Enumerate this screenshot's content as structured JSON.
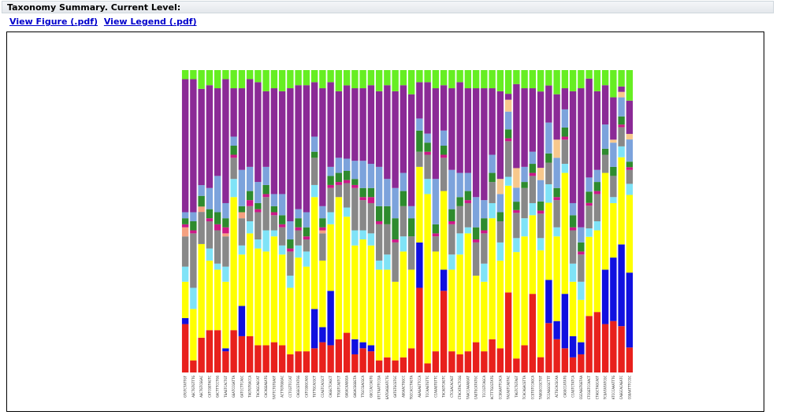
{
  "header": {
    "title": "Taxonomy Summary. Current Level:"
  },
  "links": {
    "figure": "View Figure (.pdf)",
    "legend": "View Legend (.pdf)"
  },
  "colors": [
    "#e8201c",
    "#1010e0",
    "#ffff00",
    "#7fe3f7",
    "#888888",
    "#f4a080",
    "#cc1888",
    "#2e8b2e",
    "#7ca3dc",
    "#f7c88c",
    "#8b2a96",
    "#66ee22"
  ],
  "chart_data": {
    "type": "bar",
    "stacked": true,
    "normalized": true,
    "ylim": [
      0,
      1
    ],
    "categories": [
      "GTGTCTATTGT",
      "AGCTGTGTTTG",
      "AGCTGTCGGAC",
      "CATCGGTAGTC",
      "GACTTTCCTGG",
      "TGAGTCACTGT",
      "GGATCCGATTA",
      "GATCCTTCAGC",
      "TAGTGTGACCA",
      "TACAGCAGCAT",
      "CACAGGAGATG",
      "TATTCTGTGAGT",
      "ACTTGTGGGAC",
      "CCTCGTTCCAT",
      "CAGGCGTATGG",
      "CATCGGGCAGG",
      "TGTTGCACGCT",
      "CCAGTCACGCT",
      "CAGGCTCAGCT",
      "TTGGTCAGTCT",
      "GAGACAAGGGA",
      "GAGACGGGGTA",
      "TTGCCGACGCA",
      "GGCCACCAGTG",
      "GTCTAATTCCGA",
      "GATGAGGATCTG",
      "GATGTGCGTGC",
      "AGGAACTGGCC",
      "TGCCACCTAGTA",
      "AGAGAGTTCCA",
      "TCCAAGTGTTC",
      "CCAAAGTGTTC",
      "TACAGTCAGTC",
      "CTCGACACAGT",
      "CTACATACTCGG",
      "TAACCAAAGGAT",
      "CAGTGCATATGC",
      "TCCCGTCAGCA",
      "ACTTTGCGTATG",
      "CCGGAATTCACA",
      "TACAGTCAGTAC",
      "TAGTCTGTAGT",
      "TCACAGACGTTA",
      "CCGTGTCCAGCA",
      "TAGGGCCGCTGT",
      "TCCAGGCGCTTT",
      "ACTGCACGCAA",
      "CAGGCCATATG",
      "CCAGTCTATCA",
      "CGCAGGTGGTAA",
      "CTCGGTCCAACT",
      "CTAGCTAGCAGT",
      "TCGATATATCGC",
      "ATCCCAAATTTG",
      "CAGGCACAGATC",
      "CGGAATTTCCGC"
    ],
    "series": [
      {
        "color": "#e8201c",
        "values": [
          0.16,
          0.04,
          0.13,
          0.14,
          0.14,
          0.07,
          0.14,
          0.12,
          0.12,
          0.09,
          0.09,
          0.1,
          0.09,
          0.06,
          0.07,
          0.07,
          0.08,
          0.1,
          0.09,
          0.11,
          0.13,
          0.06,
          0.08,
          0.07,
          0.04,
          0.05,
          0.04,
          0.05,
          0.08,
          0.28,
          0.03,
          0.07,
          0.27,
          0.07,
          0.06,
          0.07,
          0.1,
          0.07,
          0.11,
          0.08,
          0.27,
          0.05,
          0.09,
          0.26,
          0.05,
          0.16,
          0.11,
          0.08,
          0.05,
          0.06,
          0.2,
          0.2,
          0.16,
          0.17,
          0.17,
          0.09
        ]
      },
      {
        "color": "#1010e0",
        "values": [
          0.02,
          0.0,
          0.0,
          0.0,
          0.0,
          0.01,
          0.0,
          0.1,
          0.0,
          0.0,
          0.0,
          0.0,
          0.0,
          0.0,
          0.0,
          0.0,
          0.13,
          0.05,
          0.18,
          0.0,
          0.0,
          0.05,
          0.02,
          0.02,
          0.0,
          0.0,
          0.0,
          0.0,
          0.0,
          0.15,
          0.0,
          0.0,
          0.07,
          0.0,
          0.0,
          0.0,
          0.0,
          0.0,
          0.0,
          0.0,
          0.0,
          0.0,
          0.0,
          0.0,
          0.0,
          0.14,
          0.06,
          0.18,
          0.07,
          0.04,
          0.0,
          0.0,
          0.18,
          0.21,
          0.3,
          0.27
        ]
      },
      {
        "color": "#ffff00",
        "values": [
          0.12,
          0.17,
          0.35,
          0.23,
          0.2,
          0.22,
          0.44,
          0.17,
          0.34,
          0.32,
          0.31,
          0.35,
          0.3,
          0.22,
          0.31,
          0.28,
          0.37,
          0.22,
          0.22,
          0.47,
          0.38,
          0.31,
          0.34,
          0.33,
          0.3,
          0.29,
          0.26,
          0.35,
          0.26,
          0.25,
          0.56,
          0.33,
          0.26,
          0.27,
          0.33,
          0.39,
          0.22,
          0.23,
          0.4,
          0.29,
          0.36,
          0.38,
          0.36,
          0.26,
          0.35,
          0.25,
          0.28,
          0.4,
          0.18,
          0.14,
          0.28,
          0.27,
          0.32,
          0.18,
          0.32,
          0.28
        ]
      },
      {
        "color": "#7fe3f7",
        "values": [
          0.05,
          0.07,
          0.0,
          0.04,
          0.02,
          0.05,
          0.06,
          0.03,
          0.04,
          0.03,
          0.07,
          0.02,
          0.03,
          0.04,
          0.04,
          0.05,
          0.04,
          0.0,
          0.04,
          0.0,
          0.03,
          0.05,
          0.03,
          0.04,
          0.03,
          0.05,
          0.0,
          0.05,
          0.0,
          0.0,
          0.05,
          0.0,
          0.0,
          0.05,
          0.07,
          0.02,
          0.0,
          0.06,
          0.05,
          0.06,
          0.03,
          0.05,
          0.06,
          0.04,
          0.04,
          0.06,
          0.03,
          0.03,
          0.06,
          0.06,
          0.03,
          0.03,
          0.0,
          0.02,
          0.04,
          0.04
        ]
      },
      {
        "color": "#888888",
        "values": [
          0.1,
          0.18,
          0.12,
          0.09,
          0.11,
          0.1,
          0.07,
          0.09,
          0.05,
          0.09,
          0.11,
          0.05,
          0.06,
          0.08,
          0.05,
          0.04,
          0.09,
          0.09,
          0.08,
          0.04,
          0.08,
          0.14,
          0.1,
          0.1,
          0.12,
          0.1,
          0.13,
          0.1,
          0.11,
          0.05,
          0.08,
          0.05,
          0.11,
          0.1,
          0.09,
          0.08,
          0.11,
          0.1,
          0.07,
          0.07,
          0.12,
          0.09,
          0.1,
          0.09,
          0.08,
          0.07,
          0.09,
          0.08,
          0.11,
          0.09,
          0.08,
          0.09,
          0.06,
          0.07,
          0.07,
          0.05
        ]
      },
      {
        "color": "#f4a080",
        "values": [
          0.03,
          0.0,
          0.02,
          0.0,
          0.0,
          0.01,
          0.0,
          0.02,
          0.0,
          0.0,
          0.0,
          0.0,
          0.0,
          0.0,
          0.0,
          0.0,
          0.0,
          0.01,
          0.0,
          0.0,
          0.0,
          0.0,
          0.0,
          0.0,
          0.0,
          0.0,
          0.0,
          0.0,
          0.0,
          0.0,
          0.0,
          0.0,
          0.0,
          0.0,
          0.0,
          0.0,
          0.0,
          0.0,
          0.0,
          0.0,
          0.0,
          0.0,
          0.0,
          0.0,
          0.0,
          0.0,
          0.0,
          0.0,
          0.0,
          0.0,
          0.0,
          0.0,
          0.0,
          0.0,
          0.0,
          0.0
        ]
      },
      {
        "color": "#cc1888",
        "values": [
          0.01,
          0.01,
          0.0,
          0.01,
          0.02,
          0.02,
          0.01,
          0.0,
          0.02,
          0.01,
          0.01,
          0.01,
          0.01,
          0.01,
          0.01,
          0.01,
          0.0,
          0.01,
          0.01,
          0.01,
          0.01,
          0.01,
          0.01,
          0.02,
          0.01,
          0.0,
          0.01,
          0.0,
          0.0,
          0.0,
          0.01,
          0.01,
          0.01,
          0.01,
          0.0,
          0.01,
          0.01,
          0.01,
          0.0,
          0.0,
          0.01,
          0.01,
          0.0,
          0.01,
          0.01,
          0.0,
          0.01,
          0.01,
          0.01,
          0.01,
          0.01,
          0.01,
          0.0,
          0.0,
          0.01,
          0.01
        ]
      },
      {
        "color": "#2e8b2e",
        "values": [
          0.02,
          0.03,
          0.04,
          0.03,
          0.04,
          0.03,
          0.03,
          0.02,
          0.03,
          0.02,
          0.03,
          0.02,
          0.03,
          0.03,
          0.03,
          0.03,
          0.02,
          0.03,
          0.03,
          0.03,
          0.03,
          0.02,
          0.03,
          0.03,
          0.05,
          0.06,
          0.07,
          0.05,
          0.06,
          0.07,
          0.03,
          0.03,
          0.03,
          0.04,
          0.03,
          0.03,
          0.04,
          0.04,
          0.03,
          0.03,
          0.03,
          0.03,
          0.02,
          0.03,
          0.03,
          0.03,
          0.03,
          0.03,
          0.04,
          0.03,
          0.04,
          0.03,
          0.02,
          0.03,
          0.03,
          0.02
        ]
      },
      {
        "color": "#7ca3dc",
        "values": [
          0.02,
          0.03,
          0.04,
          0.07,
          0.12,
          0.05,
          0.03,
          0.12,
          0.08,
          0.07,
          0.06,
          0.04,
          0.07,
          0.06,
          0.03,
          0.05,
          0.05,
          0.04,
          0.03,
          0.05,
          0.04,
          0.06,
          0.09,
          0.08,
          0.13,
          0.09,
          0.1,
          0.06,
          0.04,
          0.04,
          0.03,
          0.15,
          0.05,
          0.13,
          0.08,
          0.06,
          0.1,
          0.06,
          0.06,
          0.06,
          0.06,
          0.05,
          0.05,
          0.04,
          0.07,
          0.1,
          0.1,
          0.06,
          0.04,
          0.05,
          0.05,
          0.04,
          0.08,
          0.08,
          0.07,
          0.08
        ]
      },
      {
        "color": "#f7c88c",
        "values": [
          0.0,
          0.0,
          0.0,
          0.0,
          0.0,
          0.0,
          0.0,
          0.0,
          0.0,
          0.0,
          0.0,
          0.0,
          0.0,
          0.0,
          0.0,
          0.0,
          0.0,
          0.0,
          0.0,
          0.0,
          0.0,
          0.0,
          0.0,
          0.0,
          0.0,
          0.0,
          0.0,
          0.0,
          0.0,
          0.0,
          0.0,
          0.0,
          0.0,
          0.0,
          0.0,
          0.0,
          0.0,
          0.0,
          0.0,
          0.05,
          0.04,
          0.07,
          0.0,
          0.0,
          0.04,
          0.0,
          0.06,
          0.0,
          0.0,
          0.0,
          0.0,
          0.0,
          0.0,
          0.01,
          0.02,
          0.02
        ]
      },
      {
        "color": "#8b2a96",
        "values": [
          0.44,
          0.44,
          0.36,
          0.34,
          0.29,
          0.41,
          0.16,
          0.27,
          0.29,
          0.33,
          0.25,
          0.35,
          0.34,
          0.44,
          0.41,
          0.42,
          0.18,
          0.39,
          0.28,
          0.22,
          0.24,
          0.24,
          0.24,
          0.26,
          0.25,
          0.31,
          0.32,
          0.29,
          0.37,
          0.12,
          0.17,
          0.3,
          0.15,
          0.27,
          0.3,
          0.28,
          0.36,
          0.37,
          0.22,
          0.29,
          0.02,
          0.3,
          0.26,
          0.21,
          0.25,
          0.12,
          0.15,
          0.07,
          0.37,
          0.46,
          0.35,
          0.26,
          0.13,
          0.14,
          0.02,
          0.12
        ]
      },
      {
        "color": "#66ee22",
        "values": [
          0.03,
          0.03,
          0.07,
          0.05,
          0.06,
          0.03,
          0.06,
          0.06,
          0.03,
          0.04,
          0.07,
          0.06,
          0.07,
          0.06,
          0.05,
          0.05,
          0.04,
          0.06,
          0.04,
          0.07,
          0.05,
          0.06,
          0.06,
          0.05,
          0.07,
          0.05,
          0.07,
          0.05,
          0.08,
          0.04,
          0.04,
          0.06,
          0.05,
          0.06,
          0.04,
          0.06,
          0.06,
          0.06,
          0.06,
          0.07,
          0.08,
          0.05,
          0.06,
          0.06,
          0.07,
          0.05,
          0.08,
          0.06,
          0.07,
          0.06,
          0.03,
          0.07,
          0.05,
          0.09,
          0.06,
          0.11
        ]
      }
    ]
  }
}
